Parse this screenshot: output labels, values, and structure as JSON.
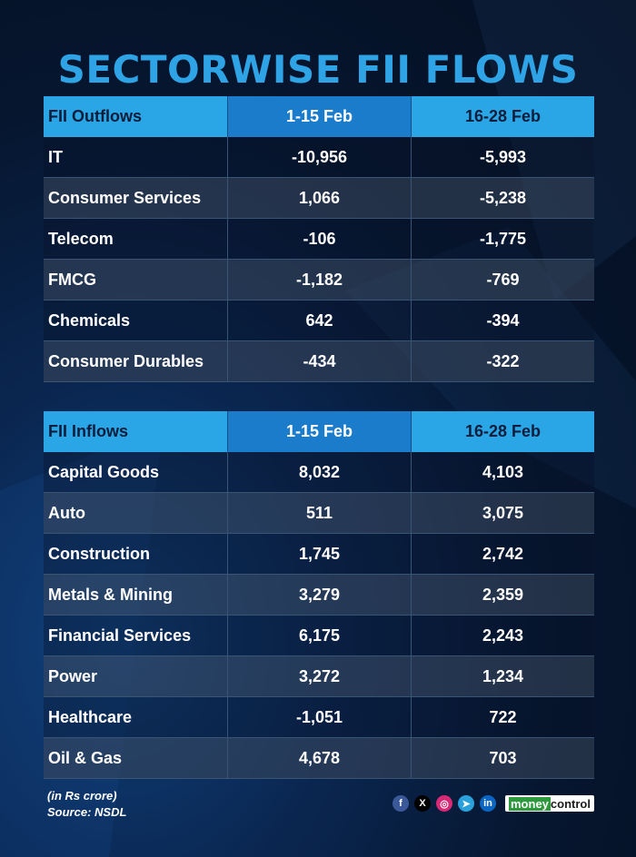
{
  "title": "SECTORWISE FII FLOWS",
  "chart_data": {
    "type": "table",
    "title": "SECTORWISE FII FLOWS",
    "tables": [
      {
        "header": [
          "FII Outflows",
          "1-15 Feb",
          "16-28 Feb"
        ],
        "rows": [
          [
            "IT",
            "-10,956",
            "-5,993"
          ],
          [
            "Consumer Services",
            "1,066",
            "-5,238"
          ],
          [
            "Telecom",
            "-106",
            "-1,775"
          ],
          [
            "FMCG",
            "-1,182",
            "-769"
          ],
          [
            "Chemicals",
            "642",
            "-394"
          ],
          [
            "Consumer Durables",
            "-434",
            "-322"
          ]
        ]
      },
      {
        "header": [
          "FII Inflows",
          "1-15 Feb",
          "16-28 Feb"
        ],
        "rows": [
          [
            "Capital Goods",
            "8,032",
            "4,103"
          ],
          [
            "Auto",
            "511",
            "3,075"
          ],
          [
            "Construction",
            "1,745",
            "2,742"
          ],
          [
            "Metals & Mining",
            "3,279",
            "2,359"
          ],
          [
            "Financial Services",
            "6,175",
            "2,243"
          ],
          [
            "Power",
            "3,272",
            "1,234"
          ],
          [
            "Healthcare",
            "-1,051",
            "722"
          ],
          [
            "Oil & Gas",
            "4,678",
            "703"
          ]
        ]
      }
    ]
  },
  "footer": {
    "unit_note": "(in Rs crore)",
    "source": "Source: NSDL",
    "brand_part1": "money",
    "brand_part2": "control",
    "icons": [
      "facebook-icon",
      "x-icon",
      "instagram-icon",
      "telegram-icon",
      "linkedin-icon"
    ],
    "icon_glyphs": [
      "f",
      "X",
      "◎",
      "➤",
      "in"
    ],
    "icon_colors": [
      "#3b5998",
      "#000000",
      "#d62976",
      "#2aa1da",
      "#0a66c2"
    ]
  },
  "colors": {
    "title": "#2ea3e6",
    "header_light": "#2aa6e6",
    "header_dark": "#1c7ccc",
    "background": "#06162f"
  }
}
